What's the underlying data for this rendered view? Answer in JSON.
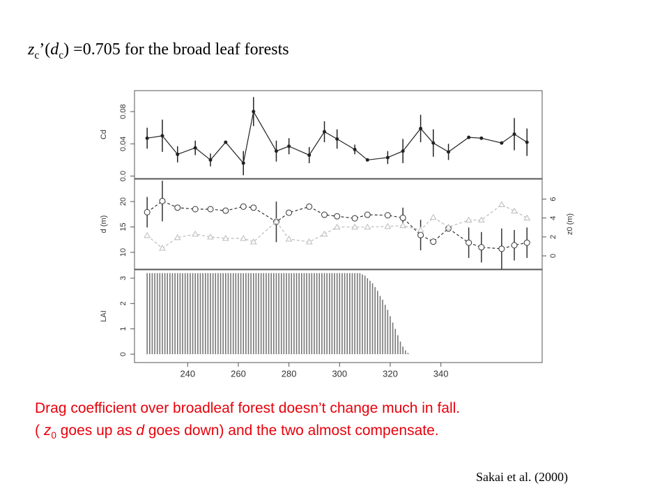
{
  "slide": {
    "title_parts": [
      "z",
      "c",
      "’(",
      "d",
      "c",
      ") =0.705 for the broad leaf forests"
    ],
    "caption_line1": "Drag coefficient over broadleaf forest doesn’t change much in fall.",
    "caption_line2_parts": [
      "( ",
      "z",
      "0",
      " goes up as ",
      "d",
      " goes down) and the two almost compensate."
    ],
    "citation": "Sakai et al. (2000)"
  },
  "chart_data": [
    {
      "type": "line",
      "ylabel": "Cd",
      "xlim": [
        219,
        380
      ],
      "ylim": [
        -0.003,
        0.106
      ],
      "yticks": [
        {
          "value": 0,
          "label": "0.0"
        },
        0.04,
        0.08
      ],
      "x": [
        224,
        230,
        236,
        243,
        249,
        255,
        262,
        266,
        275,
        280,
        288,
        294,
        299,
        306,
        311,
        319,
        325,
        332,
        337,
        343,
        351,
        356,
        364,
        369,
        374
      ],
      "series": [
        {
          "name": "Cd",
          "color": "#222222",
          "marker": "dot",
          "dash": false,
          "values": [
            0.047,
            0.05,
            0.027,
            0.035,
            0.02,
            0.042,
            0.016,
            0.08,
            0.031,
            0.037,
            0.026,
            0.055,
            0.046,
            0.033,
            0.02,
            0.023,
            0.031,
            0.059,
            0.041,
            0.03,
            0.048,
            0.047,
            0.041,
            0.052,
            0.042
          ],
          "errors": [
            0.013,
            0.02,
            0.01,
            0.009,
            0.008,
            0.0,
            0.015,
            0.018,
            0.013,
            0.01,
            0.01,
            0.013,
            0.012,
            0.006,
            0.0,
            0.008,
            0.015,
            0.017,
            0.017,
            0.01,
            0.0,
            0.0,
            0.0,
            0.02,
            0.017
          ]
        }
      ]
    },
    {
      "type": "line",
      "ylabel": "d (m)",
      "y2label": "z0 (m)",
      "xlim": [
        219,
        380
      ],
      "ylim": [
        6.7,
        24.4
      ],
      "yticks": [
        10,
        15,
        20
      ],
      "y2lim": [
        -1.4,
        8.1
      ],
      "y2ticks": [
        0,
        2,
        4,
        6
      ],
      "x": [
        224,
        230,
        236,
        243,
        249,
        255,
        262,
        266,
        275,
        280,
        288,
        294,
        299,
        306,
        311,
        319,
        325,
        332,
        337,
        343,
        351,
        356,
        364,
        369,
        374
      ],
      "series": [
        {
          "name": "d",
          "color": "#333333",
          "marker": "circle",
          "dash": true,
          "values": [
            17.9,
            20.1,
            18.8,
            18.5,
            18.5,
            18.2,
            19.0,
            18.8,
            16.0,
            17.8,
            19.0,
            17.4,
            17.1,
            16.7,
            17.4,
            17.3,
            16.8,
            13.4,
            12.1,
            14.7,
            11.9,
            11.0,
            10.7,
            11.4,
            11.9
          ],
          "errors": [
            3,
            4,
            0,
            0,
            0,
            0,
            0,
            0,
            4,
            0,
            0,
            0,
            0,
            0,
            0,
            0,
            2,
            3,
            0,
            0,
            3,
            3,
            4,
            3,
            3
          ]
        },
        {
          "name": "z0",
          "color": "#bbbbbb",
          "marker": "triangle",
          "dash": true,
          "axis": "y2",
          "values": [
            2.15,
            0.81,
            1.93,
            2.3,
            2.0,
            1.85,
            1.85,
            1.48,
            3.63,
            1.78,
            1.48,
            2.3,
            3.04,
            3.04,
            3.04,
            3.11,
            3.19,
            2.74,
            4.07,
            3.04,
            3.78,
            3.78,
            5.41,
            4.74,
            4.0
          ]
        }
      ]
    },
    {
      "type": "bar",
      "ylabel": "LAI",
      "xlim": [
        219,
        380
      ],
      "ylim": [
        -0.33,
        3.33
      ],
      "yticks": [
        0,
        1,
        2,
        3
      ],
      "xticks": [
        240,
        260,
        280,
        300,
        320,
        340
      ],
      "color": "#777777",
      "x": [
        224,
        225,
        226,
        227,
        228,
        229,
        230,
        231,
        232,
        233,
        234,
        235,
        236,
        237,
        238,
        239,
        240,
        241,
        242,
        243,
        244,
        245,
        246,
        247,
        248,
        249,
        250,
        251,
        252,
        253,
        254,
        255,
        256,
        257,
        258,
        259,
        260,
        261,
        262,
        263,
        264,
        265,
        266,
        267,
        268,
        269,
        270,
        271,
        272,
        273,
        274,
        275,
        276,
        277,
        278,
        279,
        280,
        281,
        282,
        283,
        284,
        285,
        286,
        287,
        288,
        289,
        290,
        291,
        292,
        293,
        294,
        295,
        296,
        297,
        298,
        299,
        300,
        301,
        302,
        303,
        304,
        305,
        306,
        307,
        308,
        309,
        310,
        311,
        312,
        313,
        314,
        315,
        316,
        317,
        318,
        319,
        320,
        321,
        322,
        323,
        324,
        325,
        326,
        327
      ],
      "values": [
        3.2,
        3.2,
        3.2,
        3.2,
        3.2,
        3.2,
        3.2,
        3.2,
        3.2,
        3.2,
        3.2,
        3.2,
        3.2,
        3.2,
        3.2,
        3.2,
        3.2,
        3.2,
        3.2,
        3.2,
        3.2,
        3.2,
        3.2,
        3.2,
        3.2,
        3.2,
        3.2,
        3.2,
        3.2,
        3.2,
        3.2,
        3.2,
        3.2,
        3.2,
        3.2,
        3.2,
        3.2,
        3.2,
        3.2,
        3.2,
        3.2,
        3.2,
        3.2,
        3.2,
        3.2,
        3.2,
        3.2,
        3.2,
        3.2,
        3.2,
        3.2,
        3.2,
        3.2,
        3.2,
        3.2,
        3.2,
        3.2,
        3.2,
        3.2,
        3.2,
        3.2,
        3.2,
        3.2,
        3.2,
        3.2,
        3.2,
        3.2,
        3.2,
        3.2,
        3.2,
        3.2,
        3.2,
        3.2,
        3.2,
        3.2,
        3.2,
        3.2,
        3.2,
        3.2,
        3.2,
        3.2,
        3.2,
        3.2,
        3.2,
        3.2,
        3.15,
        3.1,
        3.0,
        2.9,
        2.8,
        2.65,
        2.5,
        2.3,
        2.15,
        1.95,
        1.75,
        1.5,
        1.25,
        1.0,
        0.75,
        0.5,
        0.3,
        0.15,
        0.05
      ]
    }
  ]
}
